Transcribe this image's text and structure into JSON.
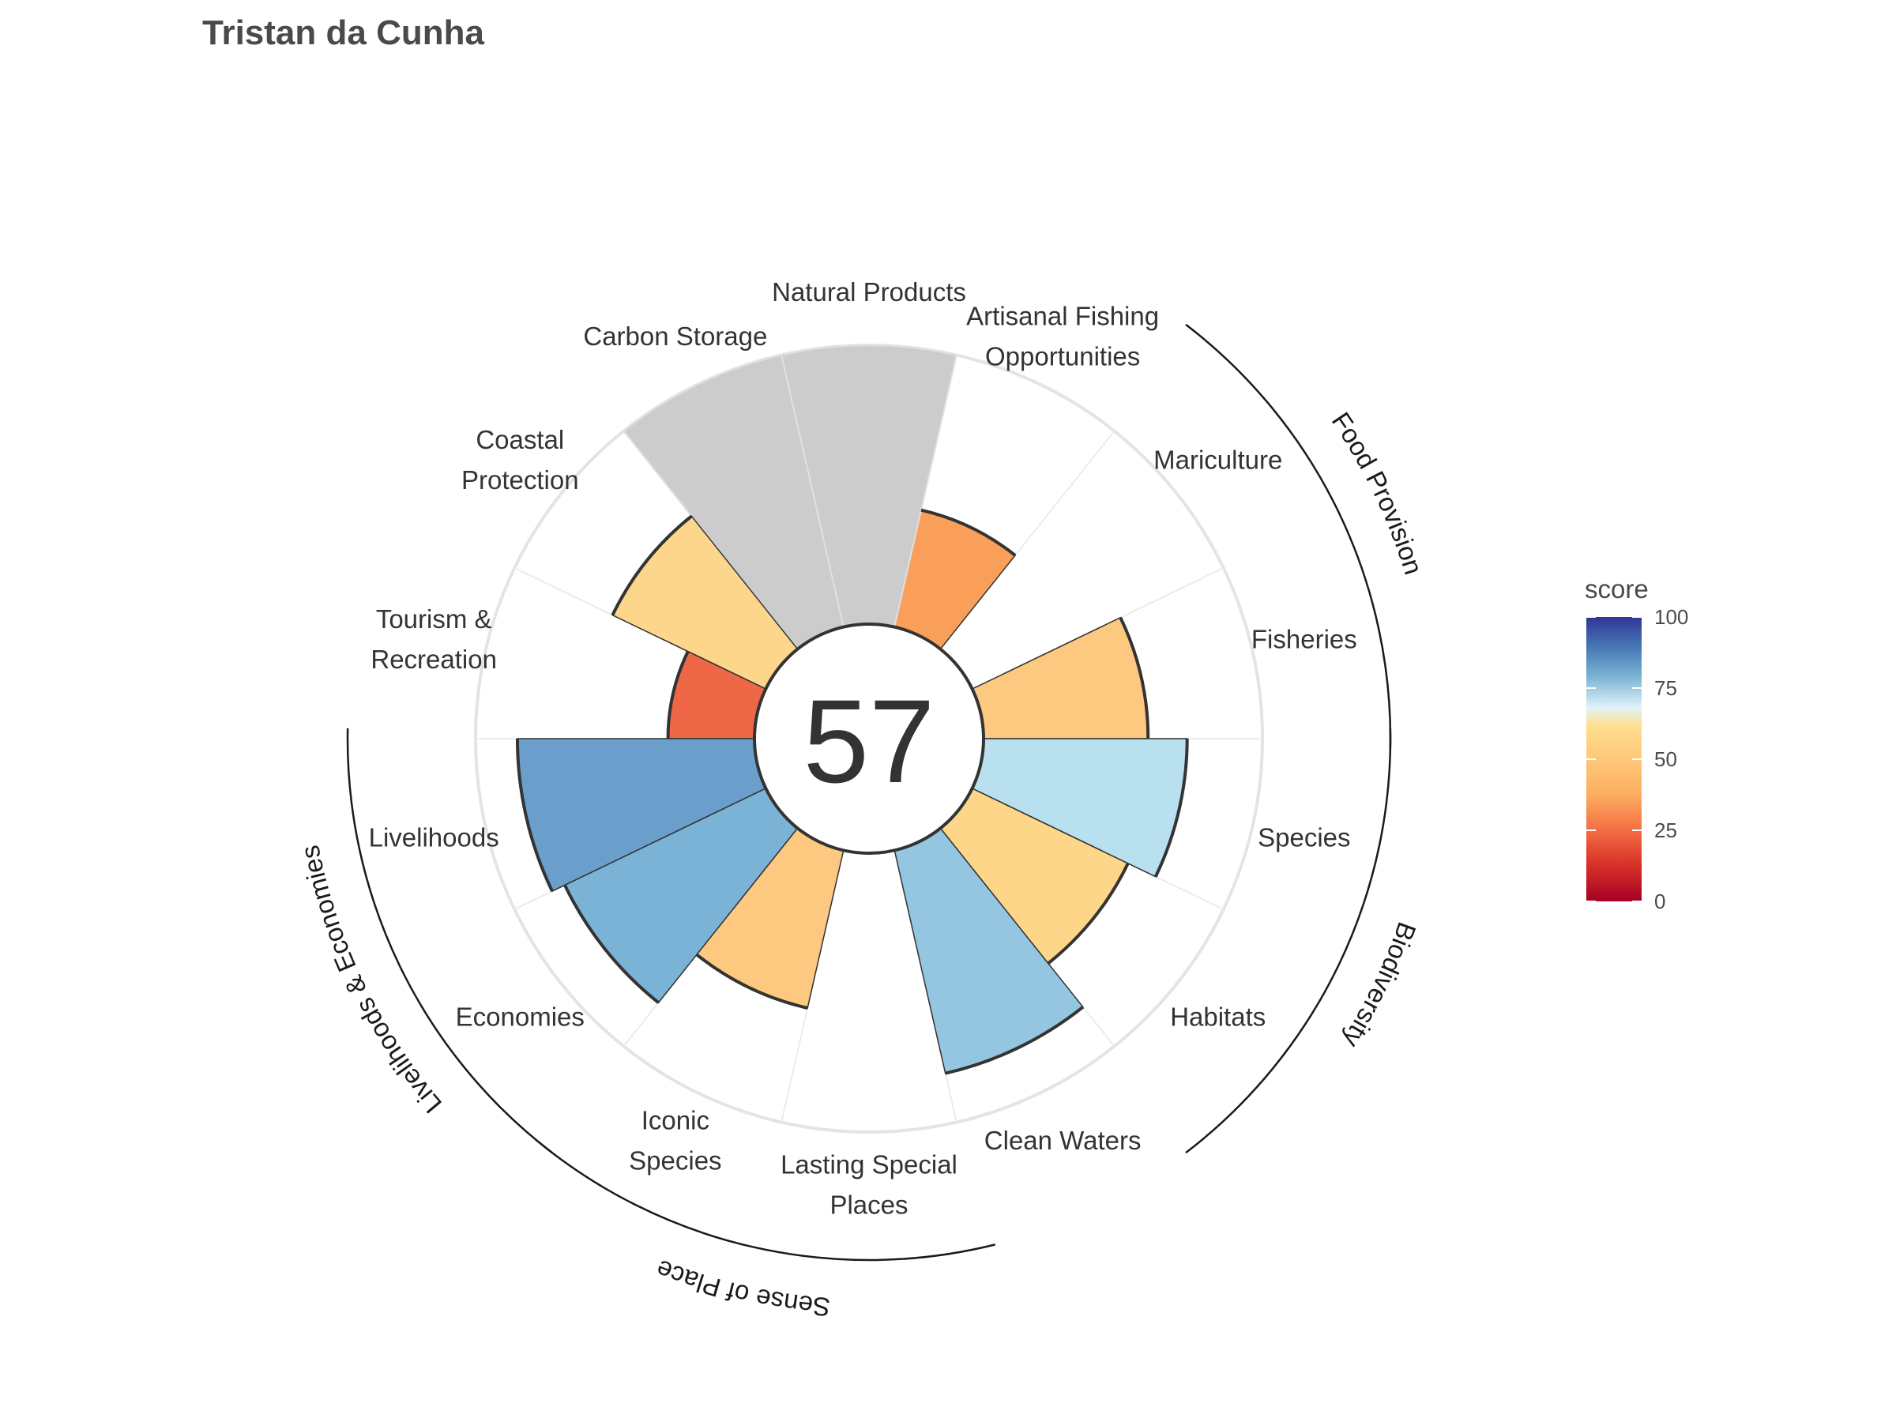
{
  "chart_data": {
    "type": "bar",
    "title": "Tristan da Cunha",
    "center_score": "57",
    "categories": [
      "Fisheries",
      "Mariculture",
      "Artisanal Fishing Opportunities",
      "Natural Products",
      "Carbon Storage",
      "Coastal Protection",
      "Tourism & Recreation",
      "Livelihoods",
      "Economies",
      "Iconic Species",
      "Lasting Special Places",
      "Clean Waters",
      "Habitats",
      "Species"
    ],
    "label_lines": [
      [
        "Fisheries"
      ],
      [
        "Mariculture"
      ],
      [
        "Artisanal Fishing",
        "Opportunities"
      ],
      [
        "Natural Products"
      ],
      [
        "Carbon Storage"
      ],
      [
        "Coastal",
        "Protection"
      ],
      [
        "Tourism &",
        "Recreation"
      ],
      [
        "Livelihoods"
      ],
      [
        "Economies"
      ],
      [
        "Iconic",
        "Species"
      ],
      [
        "Lasting Special",
        "Places"
      ],
      [
        "Clean Waters"
      ],
      [
        "Habitats"
      ],
      [
        "Species"
      ]
    ],
    "series": [
      {
        "values": [
          59,
          null,
          43,
          null,
          null,
          61,
          31,
          85,
          80,
          58,
          0,
          82,
          62,
          73
        ],
        "colors": [
          "#FDC880",
          null,
          "#F99F59",
          "#CCCCCC",
          "#CCCCCC",
          "#FCD68A",
          "#EE6848",
          "#6A9FCB",
          "#7BB3D6",
          "#FDC880",
          null,
          "#94C6E1",
          "#FDD68A",
          "#B9E0EE"
        ]
      }
    ],
    "ylim": [
      0,
      100
    ],
    "groups": [
      {
        "name": "Food Provision",
        "members": [
          "Fisheries",
          "Mariculture"
        ]
      },
      {
        "name": "Biodiversity",
        "members": [
          "Habitats",
          "Species"
        ]
      },
      {
        "name": "Sense of Place",
        "members": [
          "Iconic Species",
          "Lasting Special Places"
        ]
      },
      {
        "name": "Livelihoods & Economies",
        "members": [
          "Livelihoods",
          "Economies"
        ]
      }
    ],
    "legend": {
      "title": "score",
      "placement": "right",
      "ticks": [
        "100",
        "75",
        "50",
        "25",
        "0"
      ],
      "tick_values": [
        100,
        75,
        50,
        25,
        0
      ],
      "scale": "RdYlBu"
    },
    "na_color": "#CCCCCC",
    "grid": true
  }
}
